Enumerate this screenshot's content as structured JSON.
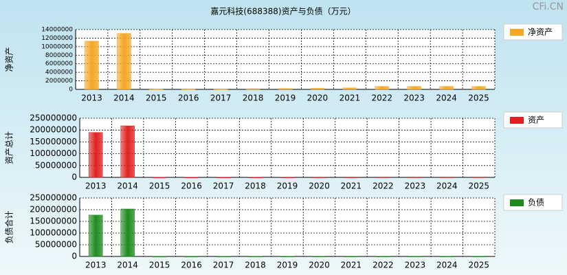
{
  "title": "嘉元科技(688388)资产与负债（万元）",
  "watermark": "CFi.CN",
  "chart_data": [
    {
      "type": "bar",
      "ylabel": "净资产",
      "categories": [
        "2013",
        "2014",
        "2015",
        "2016",
        "2017",
        "2018",
        "2019",
        "2020",
        "2021",
        "2022",
        "2023",
        "2024",
        "2025"
      ],
      "series": [
        {
          "name": "净资产",
          "color": "#f5a623",
          "values": [
            11300000,
            13100000,
            100000,
            100000,
            100000,
            150000,
            200000,
            250000,
            350000,
            700000,
            700000,
            700000,
            700000
          ]
        }
      ],
      "ylim": [
        0,
        14000000
      ],
      "yticks": [
        0,
        2000000,
        4000000,
        6000000,
        8000000,
        10000000,
        12000000,
        14000000
      ],
      "grid": true,
      "legend": "right"
    },
    {
      "type": "bar",
      "ylabel": "资产总计",
      "categories": [
        "2013",
        "2014",
        "2015",
        "2016",
        "2017",
        "2018",
        "2019",
        "2020",
        "2021",
        "2022",
        "2023",
        "2024",
        "2025"
      ],
      "series": [
        {
          "name": "资产",
          "color": "#e02020",
          "values": [
            190000000,
            218000000,
            500000,
            600000,
            700000,
            800000,
            900000,
            1000000,
            1200000,
            1500000,
            1500000,
            1500000,
            1500000
          ]
        }
      ],
      "ylim": [
        0,
        250000000
      ],
      "yticks": [
        0,
        50000000,
        100000000,
        150000000,
        200000000,
        250000000
      ],
      "grid": true,
      "legend": "right"
    },
    {
      "type": "bar",
      "ylabel": "负债合计",
      "categories": [
        "2013",
        "2014",
        "2015",
        "2016",
        "2017",
        "2018",
        "2019",
        "2020",
        "2021",
        "2022",
        "2023",
        "2024",
        "2025"
      ],
      "series": [
        {
          "name": "负债",
          "color": "#1e8a1e",
          "values": [
            177000000,
            203000000,
            300000,
            400000,
            500000,
            600000,
            700000,
            750000,
            850000,
            800000,
            800000,
            800000,
            800000
          ]
        }
      ],
      "ylim": [
        0,
        250000000
      ],
      "yticks": [
        0,
        50000000,
        100000000,
        150000000,
        200000000,
        250000000
      ],
      "grid": true,
      "legend": "right"
    }
  ]
}
